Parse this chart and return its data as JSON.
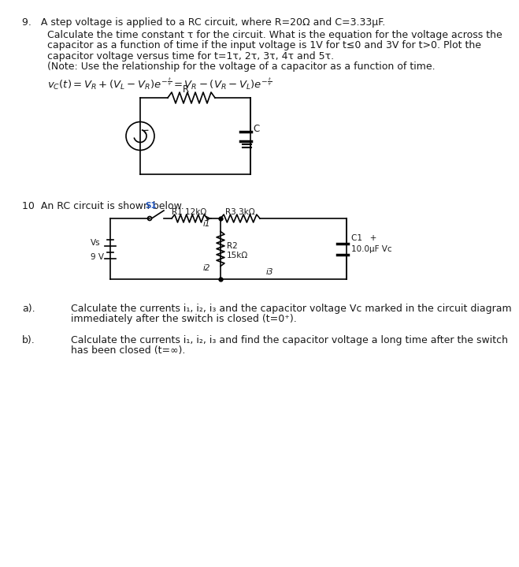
{
  "bg_color": "#ffffff",
  "text_color": "#1a1a1a",
  "q9_header": "9.   A step voltage is applied to a RC circuit, where R=20Ω and C=3.33μF.",
  "q9_body_lines": [
    "Calculate the time constant τ for the circuit. What is the equation for the voltage across the",
    "capacitor as a function of time if the input voltage is 1V for t≤0 and 3V for t>0. Plot the",
    "capacitor voltage versus time for t=1τ, 2τ, 3τ, 4τ and 5τ.",
    "(Note: Use the relationship for the voltage of a capacitor as a function of time."
  ],
  "q10_header": "10  An RC circuit is shown below.",
  "qa_label": "a).",
  "qa_text_lines": [
    "Calculate the currents i₁, i₂, i₃ and the capacitor voltage Vᴄ marked in the circuit diagram",
    "immediately after the switch is closed (t=0⁺)."
  ],
  "qb_label": "b).",
  "qb_text_lines": [
    "Calculate the currents i₁, i₂, i₃ and find the capacitor voltage a long time after the switch",
    "has been closed (t=∞)."
  ],
  "fs": 9.0,
  "fs_small": 7.5,
  "fs_formula": 9.0
}
